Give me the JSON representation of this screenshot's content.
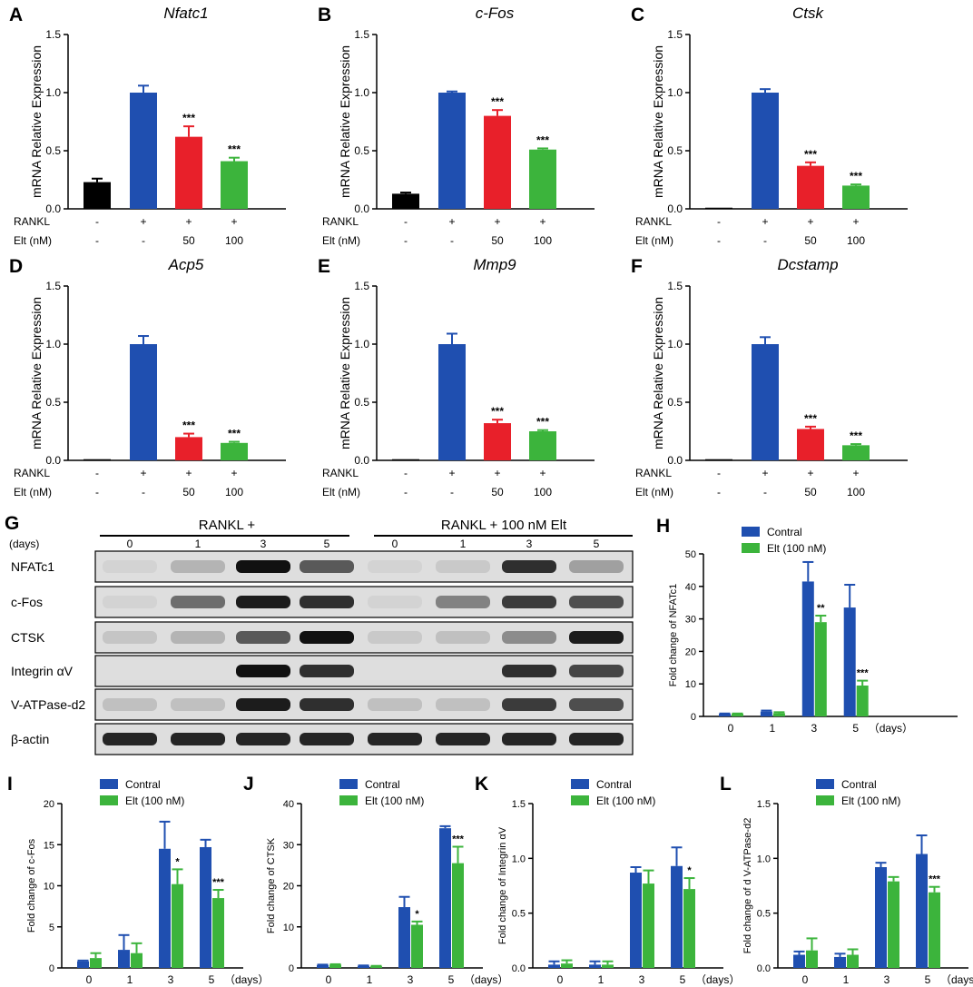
{
  "colors": {
    "black": "#000000",
    "blue": "#1f4fb0",
    "red": "#e8202a",
    "green": "#3cb43c",
    "blot_bg": "#dedede",
    "band": "#111111"
  },
  "bar_panels": [
    {
      "letter": "A",
      "gene": "Nfatc1",
      "ylabel": "mRNA Relative Expression",
      "ylim": [
        0,
        1.5
      ],
      "ticks": [
        "0.0",
        "0.5",
        "1.0",
        "1.5"
      ],
      "row_labels": [
        "RANKL",
        "Elt (nM)"
      ],
      "rows": [
        [
          "-",
          "+",
          "+",
          "+"
        ],
        [
          "-",
          "-",
          "50",
          "100"
        ]
      ],
      "values": [
        0.23,
        1.0,
        0.62,
        0.41
      ],
      "errors": [
        0.03,
        0.06,
        0.09,
        0.03
      ],
      "sig": [
        "",
        "",
        "***",
        "***"
      ]
    },
    {
      "letter": "B",
      "gene": "c-Fos",
      "ylabel": "mRNA Relative Expression",
      "ylim": [
        0,
        1.5
      ],
      "ticks": [
        "0.0",
        "0.5",
        "1.0",
        "1.5"
      ],
      "row_labels": [
        "RANKL",
        "Elt (nM)"
      ],
      "rows": [
        [
          "-",
          "+",
          "+",
          "+"
        ],
        [
          "-",
          "-",
          "50",
          "100"
        ]
      ],
      "values": [
        0.13,
        1.0,
        0.8,
        0.51
      ],
      "errors": [
        0.01,
        0.01,
        0.05,
        0.01
      ],
      "sig": [
        "",
        "",
        "***",
        "***"
      ]
    },
    {
      "letter": "C",
      "gene": "Ctsk",
      "ylabel": "mRNA Relative Expression",
      "ylim": [
        0,
        1.5
      ],
      "ticks": [
        "0.0",
        "0.5",
        "1.0",
        "1.5"
      ],
      "row_labels": [
        "RANKL",
        "Elt (nM)"
      ],
      "rows": [
        [
          "-",
          "+",
          "+",
          "+"
        ],
        [
          "-",
          "-",
          "50",
          "100"
        ]
      ],
      "values": [
        0.01,
        1.0,
        0.37,
        0.2
      ],
      "errors": [
        0.0,
        0.03,
        0.03,
        0.01
      ],
      "sig": [
        "",
        "",
        "***",
        "***"
      ]
    },
    {
      "letter": "D",
      "gene": "Acp5",
      "ylabel": "mRNA Relative Expression",
      "ylim": [
        0,
        1.5
      ],
      "ticks": [
        "0.0",
        "0.5",
        "1.0",
        "1.5"
      ],
      "row_labels": [
        "RANKL",
        "Elt (nM)"
      ],
      "rows": [
        [
          "-",
          "+",
          "+",
          "+"
        ],
        [
          "-",
          "-",
          "50",
          "100"
        ]
      ],
      "values": [
        0.01,
        1.0,
        0.2,
        0.15
      ],
      "errors": [
        0.0,
        0.07,
        0.03,
        0.01
      ],
      "sig": [
        "",
        "",
        "***",
        "***"
      ]
    },
    {
      "letter": "E",
      "gene": "Mmp9",
      "ylabel": "mRNA Relative Expression",
      "ylim": [
        0,
        1.5
      ],
      "ticks": [
        "0.0",
        "0.5",
        "1.0",
        "1.5"
      ],
      "row_labels": [
        "RANKL",
        "Elt (nM)"
      ],
      "rows": [
        [
          "-",
          "+",
          "+",
          "+"
        ],
        [
          "-",
          "-",
          "50",
          "100"
        ]
      ],
      "values": [
        0.01,
        1.0,
        0.32,
        0.25
      ],
      "errors": [
        0.0,
        0.09,
        0.03,
        0.01
      ],
      "sig": [
        "",
        "",
        "***",
        "***"
      ]
    },
    {
      "letter": "F",
      "gene": "Dcstamp",
      "ylabel": "mRNA Relative Expression",
      "ylim": [
        0,
        1.5
      ],
      "ticks": [
        "0.0",
        "0.5",
        "1.0",
        "1.5"
      ],
      "row_labels": [
        "RANKL",
        "Elt (nM)"
      ],
      "rows": [
        [
          "-",
          "+",
          "+",
          "+"
        ],
        [
          "-",
          "-",
          "50",
          "100"
        ]
      ],
      "values": [
        0.01,
        1.0,
        0.27,
        0.13
      ],
      "errors": [
        0.0,
        0.06,
        0.02,
        0.01
      ],
      "sig": [
        "",
        "",
        "***",
        "***"
      ]
    }
  ],
  "blot": {
    "letter": "G",
    "group_labels": [
      "RANKL +",
      "RANKL + 100 nM Elt"
    ],
    "days_label": "(days)",
    "days": [
      "0",
      "1",
      "3",
      "5",
      "0",
      "1",
      "3",
      "5"
    ],
    "rows": [
      {
        "label": "NFATc1",
        "intensity": [
          0.05,
          0.2,
          1.0,
          0.65,
          0.05,
          0.1,
          0.85,
          0.3
        ]
      },
      {
        "label": "c-Fos",
        "intensity": [
          0.05,
          0.55,
          0.95,
          0.85,
          0.05,
          0.45,
          0.8,
          0.7
        ]
      },
      {
        "label": "CTSK",
        "intensity": [
          0.12,
          0.2,
          0.65,
          1.0,
          0.1,
          0.15,
          0.4,
          0.95
        ]
      },
      {
        "label": "Integrin αV",
        "intensity": [
          0.0,
          0.0,
          1.0,
          0.85,
          0.0,
          0.0,
          0.85,
          0.75
        ]
      },
      {
        "label": "V-ATPase-d2",
        "intensity": [
          0.15,
          0.15,
          0.95,
          0.85,
          0.15,
          0.15,
          0.8,
          0.7
        ]
      },
      {
        "label": "β-actin",
        "intensity": [
          0.9,
          0.9,
          0.9,
          0.9,
          0.9,
          0.9,
          0.9,
          0.9
        ]
      }
    ]
  },
  "time_panels": [
    {
      "letter": "H",
      "ylabel": "Fold change of NFATc1",
      "ylim": [
        0,
        50
      ],
      "ticks": [
        "0",
        "10",
        "20",
        "30",
        "40",
        "50"
      ],
      "days": [
        "0",
        "1",
        "3",
        "5"
      ],
      "days_unit": "（days）",
      "legend": [
        "Contral",
        "Elt (100 nM)"
      ],
      "series": [
        {
          "values": [
            0.8,
            1.5,
            41.5,
            33.5
          ],
          "errors": [
            0.1,
            0.3,
            6.0,
            7.0
          ]
        },
        {
          "values": [
            0.8,
            1.0,
            29.0,
            9.5
          ],
          "errors": [
            0.1,
            0.3,
            2.0,
            1.5
          ]
        }
      ],
      "sig": [
        "",
        "",
        "**",
        "***"
      ]
    },
    {
      "letter": "I",
      "ylabel": "Fold change of c-Fos",
      "ylim": [
        0,
        20
      ],
      "ticks": [
        "0",
        "5",
        "10",
        "15",
        "20"
      ],
      "days": [
        "0",
        "1",
        "3",
        "5"
      ],
      "days_unit": "（days）",
      "legend": [
        "Contral",
        "Elt (100 nM)"
      ],
      "series": [
        {
          "values": [
            0.8,
            2.2,
            14.5,
            14.7
          ],
          "errors": [
            0.1,
            1.8,
            3.3,
            0.9
          ]
        },
        {
          "values": [
            1.2,
            1.8,
            10.2,
            8.5
          ],
          "errors": [
            0.6,
            1.2,
            1.8,
            1.0
          ]
        }
      ],
      "sig": [
        "",
        "",
        "*",
        "***"
      ]
    },
    {
      "letter": "J",
      "ylabel": "Fold change of CTSK",
      "ylim": [
        0,
        40
      ],
      "ticks": [
        "0",
        "10",
        "20",
        "30",
        "40"
      ],
      "days": [
        "0",
        "1",
        "3",
        "5"
      ],
      "days_unit": "（days）",
      "legend": [
        "Contral",
        "Elt (100 nM)"
      ],
      "series": [
        {
          "values": [
            0.7,
            0.5,
            14.8,
            34.0
          ],
          "errors": [
            0.1,
            0.1,
            2.5,
            0.5
          ]
        },
        {
          "values": [
            0.8,
            0.4,
            10.5,
            25.5
          ],
          "errors": [
            0.1,
            0.1,
            0.8,
            4.0
          ]
        }
      ],
      "sig": [
        "",
        "",
        "*",
        "***"
      ]
    },
    {
      "letter": "K",
      "ylabel": "Fold change of Integrin   αV",
      "ylim": [
        0,
        1.5
      ],
      "ticks": [
        "0.0",
        "0.5",
        "1.0",
        "1.5"
      ],
      "days": [
        "0",
        "1",
        "3",
        "5"
      ],
      "days_unit": "（days）",
      "legend": [
        "Contral",
        "Elt (100 nM)"
      ],
      "series": [
        {
          "values": [
            0.03,
            0.03,
            0.87,
            0.93
          ],
          "errors": [
            0.03,
            0.03,
            0.05,
            0.17
          ]
        },
        {
          "values": [
            0.04,
            0.03,
            0.77,
            0.72
          ],
          "errors": [
            0.03,
            0.03,
            0.12,
            0.1
          ]
        }
      ],
      "sig": [
        "",
        "",
        "",
        "*"
      ]
    },
    {
      "letter": "L",
      "ylabel": "Fold change of d V-ATPase-d2",
      "ylim": [
        0,
        1.5
      ],
      "ticks": [
        "0.0",
        "0.5",
        "1.0",
        "1.5"
      ],
      "days": [
        "0",
        "1",
        "3",
        "5"
      ],
      "days_unit": "（days）",
      "legend": [
        "Contral",
        "Elt (100 nM)"
      ],
      "series": [
        {
          "values": [
            0.12,
            0.1,
            0.92,
            1.04
          ],
          "errors": [
            0.03,
            0.03,
            0.04,
            0.17
          ]
        },
        {
          "values": [
            0.16,
            0.12,
            0.79,
            0.69
          ],
          "errors": [
            0.11,
            0.05,
            0.04,
            0.05
          ]
        }
      ],
      "sig": [
        "",
        "",
        "",
        "***"
      ]
    }
  ],
  "chart_data": [
    {
      "type": "bar",
      "title": "Nfatc1",
      "ylabel": "mRNA Relative Expression",
      "ylim": [
        0,
        1.5
      ],
      "categories": [
        "RANKL -/Elt -",
        "RANKL +/Elt -",
        "RANKL +/Elt 50",
        "RANKL +/Elt 100"
      ],
      "values": [
        0.23,
        1.0,
        0.62,
        0.41
      ]
    },
    {
      "type": "bar",
      "title": "c-Fos",
      "ylabel": "mRNA Relative Expression",
      "ylim": [
        0,
        1.5
      ],
      "categories": [
        "RANKL -/Elt -",
        "RANKL +/Elt -",
        "RANKL +/Elt 50",
        "RANKL +/Elt 100"
      ],
      "values": [
        0.13,
        1.0,
        0.8,
        0.51
      ]
    },
    {
      "type": "bar",
      "title": "Ctsk",
      "ylabel": "mRNA Relative Expression",
      "ylim": [
        0,
        1.5
      ],
      "categories": [
        "RANKL -/Elt -",
        "RANKL +/Elt -",
        "RANKL +/Elt 50",
        "RANKL +/Elt 100"
      ],
      "values": [
        0.01,
        1.0,
        0.37,
        0.2
      ]
    },
    {
      "type": "bar",
      "title": "Acp5",
      "ylabel": "mRNA Relative Expression",
      "ylim": [
        0,
        1.5
      ],
      "categories": [
        "RANKL -/Elt -",
        "RANKL +/Elt -",
        "RANKL +/Elt 50",
        "RANKL +/Elt 100"
      ],
      "values": [
        0.01,
        1.0,
        0.2,
        0.15
      ]
    },
    {
      "type": "bar",
      "title": "Mmp9",
      "ylabel": "mRNA Relative Expression",
      "ylim": [
        0,
        1.5
      ],
      "categories": [
        "RANKL -/Elt -",
        "RANKL +/Elt -",
        "RANKL +/Elt 50",
        "RANKL +/Elt 100"
      ],
      "values": [
        0.01,
        1.0,
        0.32,
        0.25
      ]
    },
    {
      "type": "bar",
      "title": "Dcstamp",
      "ylabel": "mRNA Relative Expression",
      "ylim": [
        0,
        1.5
      ],
      "categories": [
        "RANKL -/Elt -",
        "RANKL +/Elt -",
        "RANKL +/Elt 50",
        "RANKL +/Elt 100"
      ],
      "values": [
        0.01,
        1.0,
        0.27,
        0.13
      ]
    },
    {
      "type": "bar",
      "ylabel": "Fold change of NFATc1",
      "categories": [
        "0",
        "1",
        "3",
        "5"
      ],
      "ylim": [
        0,
        50
      ],
      "series": [
        {
          "name": "Contral",
          "values": [
            0.8,
            1.5,
            41.5,
            33.5
          ]
        },
        {
          "name": "Elt (100 nM)",
          "values": [
            0.8,
            1.0,
            29.0,
            9.5
          ]
        }
      ]
    },
    {
      "type": "bar",
      "ylabel": "Fold change of c-Fos",
      "categories": [
        "0",
        "1",
        "3",
        "5"
      ],
      "ylim": [
        0,
        20
      ],
      "series": [
        {
          "name": "Contral",
          "values": [
            0.8,
            2.2,
            14.5,
            14.7
          ]
        },
        {
          "name": "Elt (100 nM)",
          "values": [
            1.2,
            1.8,
            10.2,
            8.5
          ]
        }
      ]
    },
    {
      "type": "bar",
      "ylabel": "Fold change of CTSK",
      "categories": [
        "0",
        "1",
        "3",
        "5"
      ],
      "ylim": [
        0,
        40
      ],
      "series": [
        {
          "name": "Contral",
          "values": [
            0.7,
            0.5,
            14.8,
            34.0
          ]
        },
        {
          "name": "Elt (100 nM)",
          "values": [
            0.8,
            0.4,
            10.5,
            25.5
          ]
        }
      ]
    },
    {
      "type": "bar",
      "ylabel": "Fold change of Integrin   αV",
      "categories": [
        "0",
        "1",
        "3",
        "5"
      ],
      "ylim": [
        0,
        1.5
      ],
      "series": [
        {
          "name": "Contral",
          "values": [
            0.03,
            0.03,
            0.87,
            0.93
          ]
        },
        {
          "name": "Elt (100 nM)",
          "values": [
            0.04,
            0.03,
            0.77,
            0.72
          ]
        }
      ]
    },
    {
      "type": "bar",
      "ylabel": "Fold change of d V-ATPase-d2",
      "categories": [
        "0",
        "1",
        "3",
        "5"
      ],
      "ylim": [
        0,
        1.5
      ],
      "series": [
        {
          "name": "Contral",
          "values": [
            0.12,
            0.1,
            0.92,
            1.04
          ]
        },
        {
          "name": "Elt (100 nM)",
          "values": [
            0.16,
            0.12,
            0.79,
            0.69
          ]
        }
      ]
    }
  ]
}
